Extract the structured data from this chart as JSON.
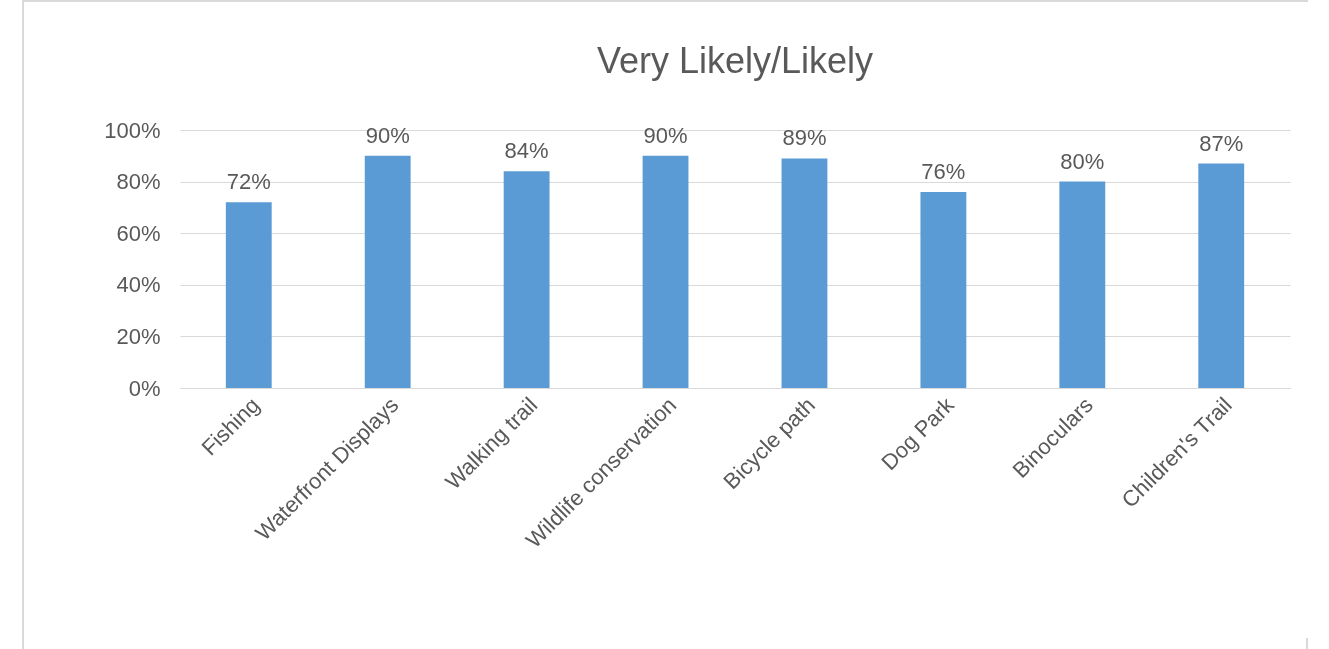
{
  "chart_data": {
    "type": "bar",
    "title": "Very Likely/Likely",
    "categories": [
      "Fishing",
      "Waterfront Displays",
      "Walking trail",
      "Wildlife conservation",
      "Bicycle path",
      "Dog Park",
      "Binoculars",
      "Children's Trail"
    ],
    "values": [
      72,
      90,
      84,
      90,
      89,
      76,
      80,
      87
    ],
    "value_labels": [
      "72%",
      "90%",
      "84%",
      "90%",
      "89%",
      "76%",
      "80%",
      "87%"
    ],
    "color": "#5b9bd5",
    "ylim": [
      0,
      100
    ],
    "yticks": [
      {
        "value": 0,
        "label": "0%"
      },
      {
        "value": 20,
        "label": "20%"
      },
      {
        "value": 40,
        "label": "40%"
      },
      {
        "value": 60,
        "label": "60%"
      },
      {
        "value": 80,
        "label": "80%"
      },
      {
        "value": 100,
        "label": "100%"
      }
    ],
    "grid": "y"
  }
}
